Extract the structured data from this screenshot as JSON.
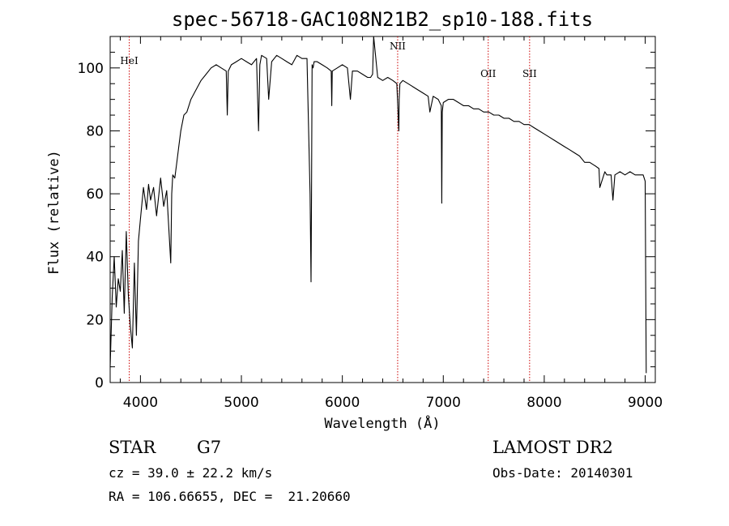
{
  "chart_data": {
    "type": "line",
    "title": "spec-56718-GAC108N21B2_sp10-188.fits",
    "xlabel": "Wavelength (Å)",
    "ylabel": "Flux (relative)",
    "xlim": [
      3700,
      9100
    ],
    "ylim": [
      0,
      110
    ],
    "x_ticks": [
      4000,
      5000,
      6000,
      7000,
      8000,
      9000
    ],
    "y_ticks": [
      0,
      20,
      40,
      60,
      80,
      100
    ],
    "grid": false,
    "line_color": "#000000",
    "marker_color": "#cc0000",
    "series": [
      {
        "x": [
          3700,
          3720,
          3740,
          3760,
          3780,
          3800,
          3820,
          3840,
          3860,
          3880,
          3900,
          3920,
          3940,
          3960,
          3980,
          4000,
          4030,
          4060,
          4080,
          4100,
          4130,
          4160,
          4200,
          4230,
          4260,
          4290,
          4300,
          4310,
          4320,
          4340,
          4360,
          4380,
          4400,
          4430,
          4460,
          4500,
          4550,
          4600,
          4650,
          4700,
          4750,
          4800,
          4850,
          4860,
          4870,
          4900,
          4950,
          5000,
          5050,
          5100,
          5150,
          5170,
          5183,
          5200,
          5250,
          5270,
          5300,
          5350,
          5400,
          5450,
          5500,
          5550,
          5600,
          5650,
          5680,
          5690,
          5695,
          5700,
          5710,
          5720,
          5750,
          5800,
          5850,
          5890,
          5895,
          5900,
          5950,
          6000,
          6050,
          6080,
          6100,
          6150,
          6200,
          6250,
          6280,
          6300,
          6310,
          6350,
          6400,
          6450,
          6500,
          6540,
          6560,
          6563,
          6570,
          6600,
          6650,
          6700,
          6750,
          6800,
          6850,
          6867,
          6900,
          6950,
          6980,
          6985,
          6990,
          7000,
          7050,
          7100,
          7150,
          7200,
          7250,
          7300,
          7350,
          7400,
          7450,
          7500,
          7550,
          7600,
          7650,
          7700,
          7750,
          7800,
          7850,
          7900,
          7950,
          8000,
          8050,
          8100,
          8150,
          8200,
          8250,
          8300,
          8350,
          8400,
          8450,
          8498,
          8500,
          8542,
          8550,
          8600,
          8620,
          8662,
          8680,
          8700,
          8750,
          8800,
          8850,
          8900,
          8950,
          8980,
          9000,
          9010
        ],
        "y": [
          5,
          27,
          40,
          24,
          33,
          29,
          42,
          22,
          48,
          28,
          18,
          11,
          38,
          15,
          45,
          52,
          62,
          55,
          63,
          58,
          62,
          53,
          65,
          56,
          61,
          44,
          38,
          60,
          66,
          65,
          70,
          75,
          80,
          85,
          86,
          90,
          93,
          96,
          98,
          100,
          101,
          100,
          99,
          85,
          99,
          101,
          102,
          103,
          102,
          101,
          103,
          80,
          101,
          104,
          103,
          90,
          102,
          104,
          103,
          102,
          101,
          104,
          103,
          103,
          60,
          32,
          60,
          101,
          100,
          102,
          102,
          101,
          100,
          99,
          88,
          99,
          100,
          101,
          100,
          90,
          99,
          99,
          98,
          97,
          97,
          98,
          110,
          97,
          96,
          97,
          96,
          95,
          80,
          90,
          95,
          96,
          95,
          94,
          93,
          92,
          91,
          86,
          91,
          90,
          88,
          57,
          86,
          89,
          90,
          90,
          89,
          88,
          88,
          87,
          87,
          86,
          86,
          85,
          85,
          84,
          84,
          83,
          83,
          82,
          82,
          81,
          80,
          79,
          78,
          77,
          76,
          75,
          74,
          73,
          72,
          70,
          70,
          69,
          69,
          68,
          62,
          67,
          66,
          66,
          58,
          66,
          67,
          66,
          67,
          66,
          66,
          66,
          64,
          3
        ]
      }
    ],
    "lines": [
      {
        "name": "HeI",
        "x": 3889
      },
      {
        "name": "NII",
        "x": 6548
      },
      {
        "name": "OII",
        "x": 7445
      },
      {
        "name": "SII",
        "x": 7855
      }
    ]
  },
  "info": {
    "class": "STAR",
    "subclass": "G7",
    "survey": "LAMOST DR2",
    "cz": "cz = 39.0 ± 22.2 km/s",
    "obs_date": "Obs-Date: 20140301",
    "radec": "RA = 106.66655, DEC =  21.20660"
  }
}
